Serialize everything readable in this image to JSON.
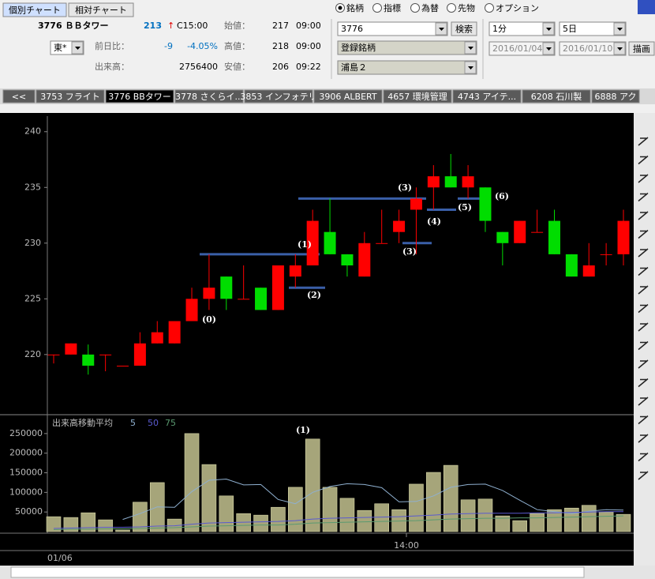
{
  "toolbar": {
    "tabs": [
      "個別チャート",
      "相対チャート"
    ],
    "symbol": "3776 ＢＢタワー",
    "price": "213",
    "arrow": "↑",
    "time": "C15:00",
    "market": "東*",
    "change_label": "前日比：",
    "change": "-9",
    "change_pct": "-4.05%",
    "volume_label": "出来高：",
    "volume": "2756400",
    "open_label": "始値：",
    "open": "217",
    "open_time": "09:00",
    "high_label": "高値：",
    "high": "218",
    "high_time": "09:00",
    "low_label": "安値：",
    "low": "206",
    "low_time": "09:22"
  },
  "search": {
    "radios": [
      "銘柄",
      "指標",
      "為替",
      "先物",
      "オプション"
    ],
    "code": "3776",
    "button": "検索",
    "list": "登録銘柄",
    "group": "浦島２"
  },
  "period": {
    "interval": "1分",
    "span": "5日",
    "from": "2016/01/04",
    "to": "2016/01/10",
    "button": "描画"
  },
  "stock_tabs": [
    "<<",
    "3753 フライト",
    "3776 BBタワー",
    "3778 さくらイ...",
    "3853 インフォテリ",
    "3906 ALBERT",
    "4657 環境管理",
    "4743 アイテ...",
    "6208 石川製",
    "6888 アク"
  ],
  "chart_data": [
    {
      "type": "candlestick",
      "up_color": "#ff0000",
      "down_color": "#00dd00",
      "level_color": "#3a5fa8",
      "open": [
        220,
        220,
        220,
        220,
        219,
        219,
        221,
        221,
        223,
        225,
        227,
        225,
        226,
        224,
        227,
        228,
        231,
        229,
        227,
        230,
        231,
        233,
        235,
        236,
        235,
        235,
        231,
        230,
        231,
        232,
        229,
        227,
        229,
        229
      ],
      "high": [
        220,
        221,
        220.9,
        220,
        219,
        222,
        223,
        223,
        226,
        229,
        227,
        228,
        226,
        228,
        229,
        233,
        234,
        229,
        231,
        233,
        233,
        235,
        237,
        238,
        237,
        235,
        231,
        232,
        233,
        233,
        229,
        230,
        230,
        233
      ],
      "low": [
        219.2,
        220,
        218.2,
        218.5,
        219,
        219,
        221,
        221,
        223,
        224,
        224,
        225,
        224,
        224,
        226,
        228,
        229,
        227,
        227,
        230,
        230,
        229,
        233,
        235,
        234,
        231,
        228,
        230,
        231,
        229,
        227,
        227,
        228,
        228
      ],
      "close": [
        220,
        221,
        219,
        220,
        219,
        221,
        222,
        223,
        225,
        226,
        225,
        225,
        224,
        228,
        228,
        232,
        229,
        228,
        230,
        230,
        232,
        234,
        236,
        235,
        236,
        232,
        230,
        232,
        231,
        229,
        227,
        228,
        229,
        232
      ],
      "ylim": [
        214.6,
        241.4
      ],
      "yticks": [
        220,
        225,
        230,
        235,
        240
      ],
      "levels": [
        229,
        234,
        226,
        230,
        233,
        234
      ],
      "annotations": [
        "(0)",
        "(1)",
        "(2)",
        "(3)",
        "(3)",
        "(4)",
        "(5)",
        "(6)"
      ]
    },
    {
      "type": "bar",
      "title": "出来高移動平均",
      "color": "#a6a57a",
      "values": [
        38000,
        36000,
        48000,
        30000,
        4000,
        75000,
        125000,
        32000,
        250000,
        171000,
        91000,
        46000,
        42000,
        62000,
        113000,
        236000,
        113000,
        85000,
        54000,
        71000,
        56000,
        121000,
        151000,
        169000,
        81000,
        83000,
        40000,
        28000,
        46000,
        56000,
        60000,
        67000,
        50000,
        44000
      ],
      "series": [
        {
          "name": "5",
          "color": "#8fb0d0",
          "values": [
            null,
            null,
            null,
            null,
            31000,
            46000,
            63000,
            62000,
            102000,
            131000,
            134000,
            119000,
            120000,
            82000,
            71000,
            100000,
            115000,
            122000,
            120000,
            112000,
            76000,
            77000,
            91000,
            113000,
            120000,
            121000,
            105000,
            80000,
            56000,
            51000,
            46000,
            52000,
            56000,
            55000
          ]
        },
        {
          "name": "50",
          "color": "#5a5ad0",
          "values": [
            8000,
            9000,
            10000,
            11000,
            11000,
            12000,
            14000,
            15000,
            19000,
            22000,
            23000,
            24000,
            25000,
            26000,
            28000,
            32000,
            34000,
            35000,
            36000,
            37000,
            38000,
            40000,
            42000,
            45000,
            46000,
            47000,
            47000,
            47000,
            48000,
            48000,
            49000,
            50000,
            51000,
            51000
          ]
        },
        {
          "name": "75",
          "color": "#5a9a70",
          "values": [
            5000,
            6000,
            6000,
            7000,
            7000,
            8000,
            9000,
            10000,
            12000,
            14000,
            15000,
            16000,
            17000,
            17000,
            19000,
            22000,
            23000,
            24000,
            25000,
            26000,
            27000,
            28000,
            30000,
            32000,
            33000,
            34000,
            34000,
            35000,
            35000,
            36000,
            37000,
            38000,
            39000,
            40000
          ]
        }
      ],
      "ylim": [
        0,
        288000
      ],
      "yticks": [
        50000,
        100000,
        150000,
        200000,
        250000
      ],
      "annotation": "(1)",
      "xtick": "14:00",
      "date": "01/06"
    }
  ]
}
